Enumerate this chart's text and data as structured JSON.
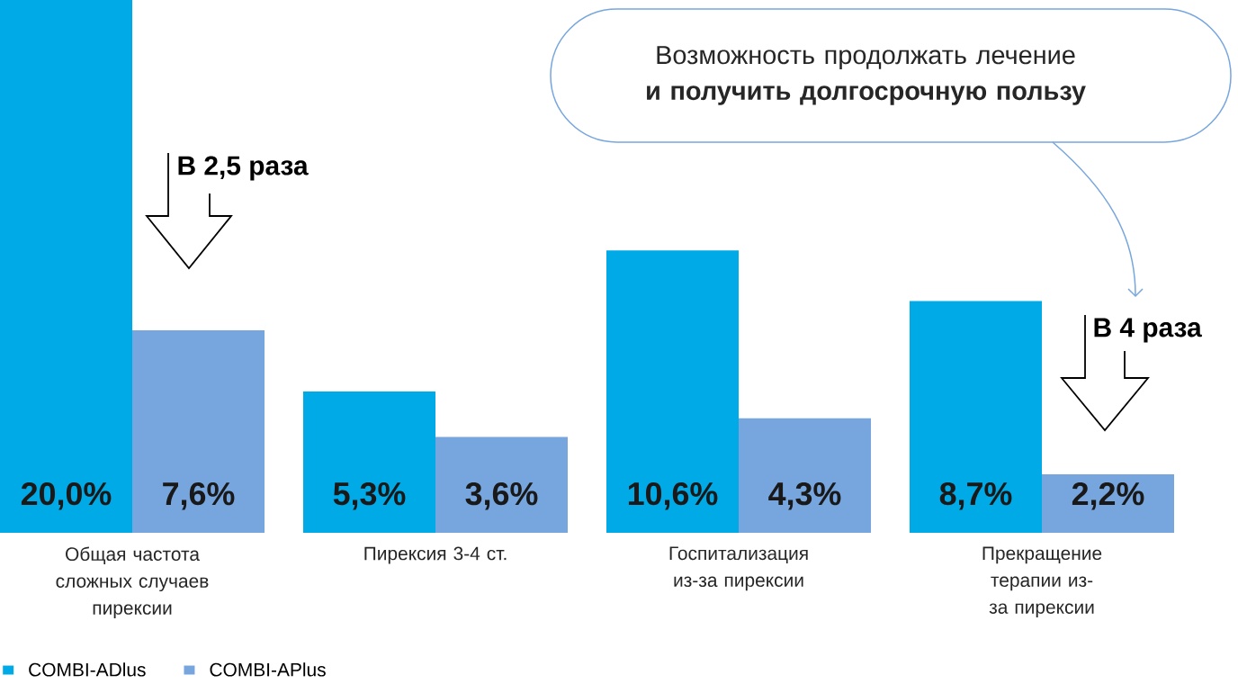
{
  "chart_data": {
    "type": "bar",
    "categories": [
      "Общая частота сложных случаев пирексии",
      "Пирексия 3-4 ст.",
      "Госпитализация из-за пирексии",
      "Прекращение терапии из-за пирексии"
    ],
    "series": [
      {
        "name": "COMBI-ADlus",
        "color": "#00aae7",
        "values": [
          20.0,
          5.3,
          10.6,
          8.7
        ],
        "value_labels": [
          "20,0%",
          "5,3%",
          "10,6%",
          "8,7%"
        ]
      },
      {
        "name": "COMBI-APlus",
        "color": "#77a6df",
        "values": [
          7.6,
          3.6,
          4.3,
          2.2
        ],
        "value_labels": [
          "7,6%",
          "3,6%",
          "4,3%",
          "2,2%"
        ]
      }
    ],
    "annotations": [
      "Возможность продолжать лечение **и получить долгосрочную пользу**",
      "В 2,5 раза",
      "В 4 раза"
    ],
    "legend": "bottom left"
  }
}
